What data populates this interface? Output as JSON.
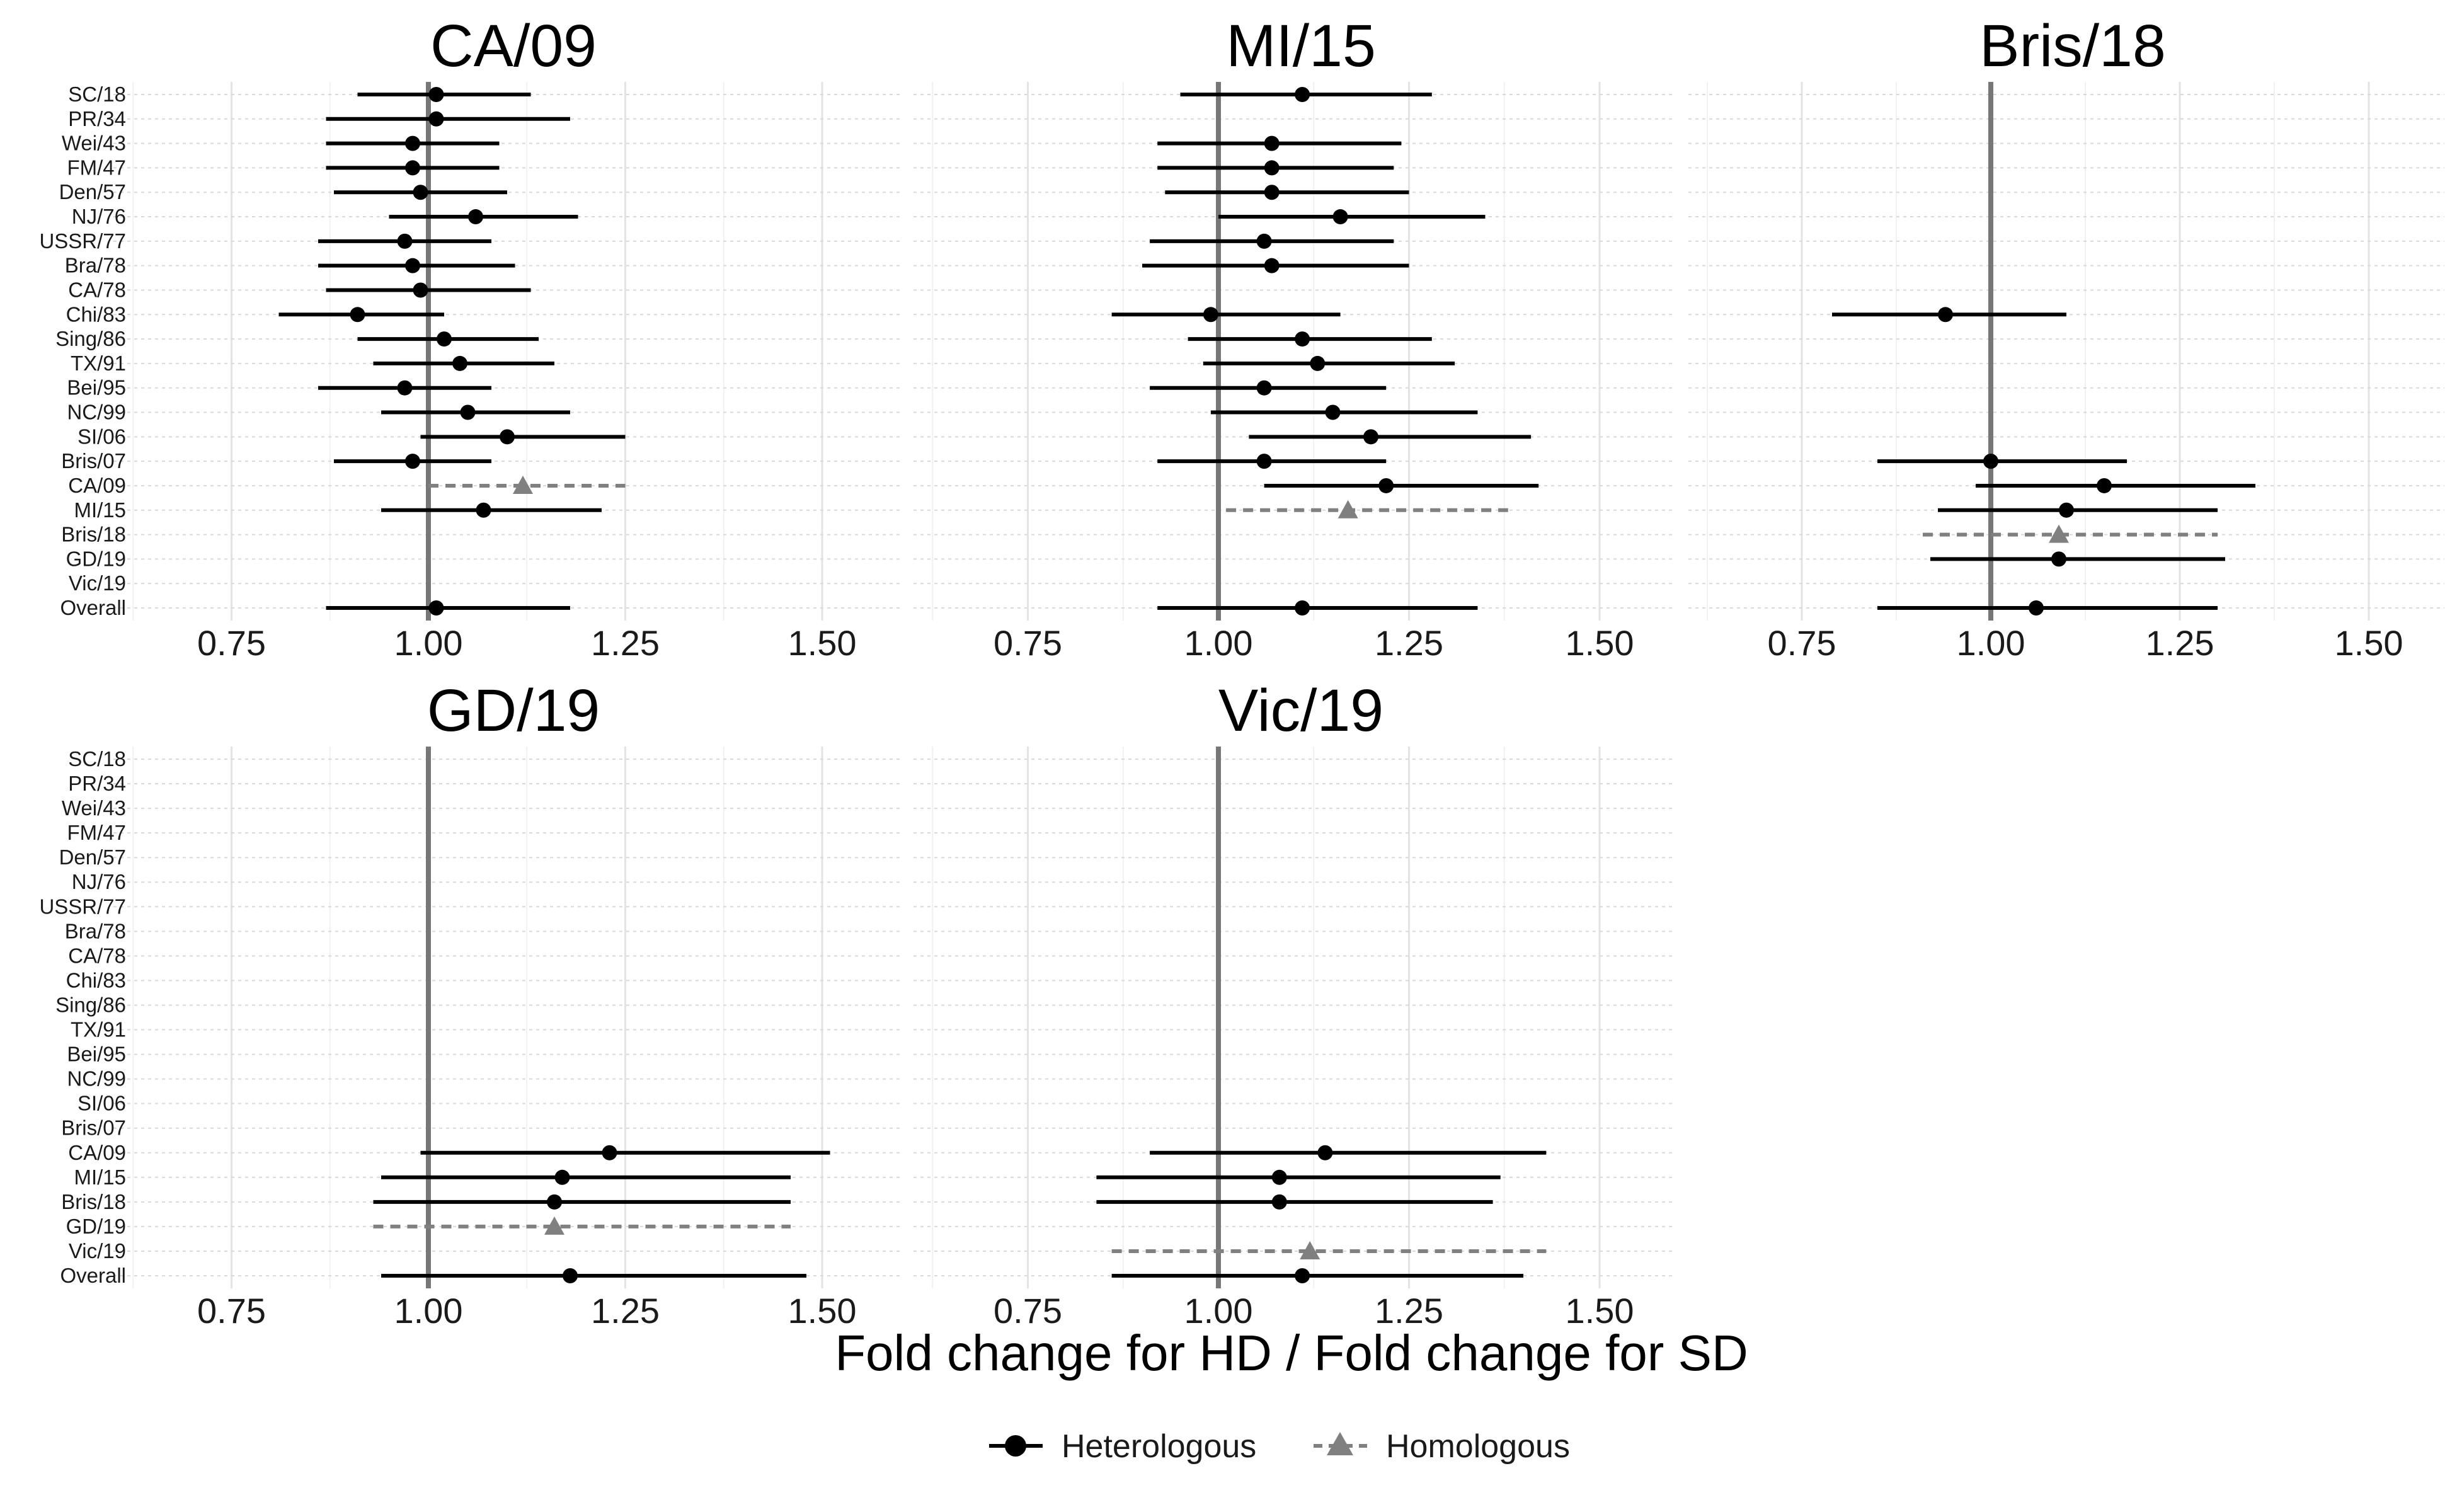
{
  "chart_data": {
    "type": "forest",
    "xlabel": "Fold change for HD / Fold change for SD",
    "xlim": [
      0.6,
      1.6
    ],
    "xticks": [
      "0.75",
      "1.00",
      "1.25",
      "1.50"
    ],
    "xtick_values": [
      0.75,
      1.0,
      1.25,
      1.5
    ],
    "reference_line": 1.0,
    "grid": true,
    "rows": [
      "SC/18",
      "PR/34",
      "Wei/43",
      "FM/47",
      "Den/57",
      "NJ/76",
      "USSR/77",
      "Bra/78",
      "CA/78",
      "Chi/83",
      "Sing/86",
      "TX/91",
      "Bei/95",
      "NC/99",
      "SI/06",
      "Bris/07",
      "CA/09",
      "MI/15",
      "Bris/18",
      "GD/19",
      "Vic/19",
      "Overall"
    ],
    "legend": {
      "position": "bottom",
      "entries": [
        {
          "label": "Heterologous",
          "marker": "circle",
          "line": "solid",
          "color": "#000000"
        },
        {
          "label": "Homologous",
          "marker": "triangle",
          "line": "dashed",
          "color": "#808080"
        }
      ]
    },
    "panels": [
      {
        "title": "CA/09",
        "points": [
          {
            "row": "SC/18",
            "est": 1.01,
            "lo": 0.91,
            "hi": 1.13,
            "type": "Heterologous"
          },
          {
            "row": "PR/34",
            "est": 1.01,
            "lo": 0.87,
            "hi": 1.18,
            "type": "Heterologous"
          },
          {
            "row": "Wei/43",
            "est": 0.98,
            "lo": 0.87,
            "hi": 1.09,
            "type": "Heterologous"
          },
          {
            "row": "FM/47",
            "est": 0.98,
            "lo": 0.87,
            "hi": 1.09,
            "type": "Heterologous"
          },
          {
            "row": "Den/57",
            "est": 0.99,
            "lo": 0.88,
            "hi": 1.1,
            "type": "Heterologous"
          },
          {
            "row": "NJ/76",
            "est": 1.06,
            "lo": 0.95,
            "hi": 1.19,
            "type": "Heterologous"
          },
          {
            "row": "USSR/77",
            "est": 0.97,
            "lo": 0.86,
            "hi": 1.08,
            "type": "Heterologous"
          },
          {
            "row": "Bra/78",
            "est": 0.98,
            "lo": 0.86,
            "hi": 1.11,
            "type": "Heterologous"
          },
          {
            "row": "CA/78",
            "est": 0.99,
            "lo": 0.87,
            "hi": 1.13,
            "type": "Heterologous"
          },
          {
            "row": "Chi/83",
            "est": 0.91,
            "lo": 0.81,
            "hi": 1.02,
            "type": "Heterologous"
          },
          {
            "row": "Sing/86",
            "est": 1.02,
            "lo": 0.91,
            "hi": 1.14,
            "type": "Heterologous"
          },
          {
            "row": "TX/91",
            "est": 1.04,
            "lo": 0.93,
            "hi": 1.16,
            "type": "Heterologous"
          },
          {
            "row": "Bei/95",
            "est": 0.97,
            "lo": 0.86,
            "hi": 1.08,
            "type": "Heterologous"
          },
          {
            "row": "NC/99",
            "est": 1.05,
            "lo": 0.94,
            "hi": 1.18,
            "type": "Heterologous"
          },
          {
            "row": "SI/06",
            "est": 1.1,
            "lo": 0.99,
            "hi": 1.25,
            "type": "Heterologous"
          },
          {
            "row": "Bris/07",
            "est": 0.98,
            "lo": 0.88,
            "hi": 1.08,
            "type": "Heterologous"
          },
          {
            "row": "CA/09",
            "est": 1.12,
            "lo": 1.0,
            "hi": 1.25,
            "type": "Homologous"
          },
          {
            "row": "MI/15",
            "est": 1.07,
            "lo": 0.94,
            "hi": 1.22,
            "type": "Heterologous"
          },
          {
            "row": "Overall",
            "est": 1.01,
            "lo": 0.87,
            "hi": 1.18,
            "type": "Heterologous"
          }
        ]
      },
      {
        "title": "MI/15",
        "points": [
          {
            "row": "SC/18",
            "est": 1.11,
            "lo": 0.95,
            "hi": 1.28,
            "type": "Heterologous"
          },
          {
            "row": "Wei/43",
            "est": 1.07,
            "lo": 0.92,
            "hi": 1.24,
            "type": "Heterologous"
          },
          {
            "row": "FM/47",
            "est": 1.07,
            "lo": 0.92,
            "hi": 1.23,
            "type": "Heterologous"
          },
          {
            "row": "Den/57",
            "est": 1.07,
            "lo": 0.93,
            "hi": 1.25,
            "type": "Heterologous"
          },
          {
            "row": "NJ/76",
            "est": 1.16,
            "lo": 1.0,
            "hi": 1.35,
            "type": "Heterologous"
          },
          {
            "row": "USSR/77",
            "est": 1.06,
            "lo": 0.91,
            "hi": 1.23,
            "type": "Heterologous"
          },
          {
            "row": "Bra/78",
            "est": 1.07,
            "lo": 0.9,
            "hi": 1.25,
            "type": "Heterologous"
          },
          {
            "row": "Chi/83",
            "est": 0.99,
            "lo": 0.86,
            "hi": 1.16,
            "type": "Heterologous"
          },
          {
            "row": "Sing/86",
            "est": 1.11,
            "lo": 0.96,
            "hi": 1.28,
            "type": "Heterologous"
          },
          {
            "row": "TX/91",
            "est": 1.13,
            "lo": 0.98,
            "hi": 1.31,
            "type": "Heterologous"
          },
          {
            "row": "Bei/95",
            "est": 1.06,
            "lo": 0.91,
            "hi": 1.22,
            "type": "Heterologous"
          },
          {
            "row": "NC/99",
            "est": 1.15,
            "lo": 0.99,
            "hi": 1.34,
            "type": "Heterologous"
          },
          {
            "row": "SI/06",
            "est": 1.2,
            "lo": 1.04,
            "hi": 1.41,
            "type": "Heterologous"
          },
          {
            "row": "Bris/07",
            "est": 1.06,
            "lo": 0.92,
            "hi": 1.22,
            "type": "Heterologous"
          },
          {
            "row": "CA/09",
            "est": 1.22,
            "lo": 1.06,
            "hi": 1.42,
            "type": "Heterologous"
          },
          {
            "row": "MI/15",
            "est": 1.17,
            "lo": 1.01,
            "hi": 1.38,
            "type": "Homologous"
          },
          {
            "row": "Overall",
            "est": 1.11,
            "lo": 0.92,
            "hi": 1.34,
            "type": "Heterologous"
          }
        ]
      },
      {
        "title": "Bris/18",
        "points": [
          {
            "row": "Chi/83",
            "est": 0.94,
            "lo": 0.79,
            "hi": 1.1,
            "type": "Heterologous"
          },
          {
            "row": "Bris/07",
            "est": 1.0,
            "lo": 0.85,
            "hi": 1.18,
            "type": "Heterologous"
          },
          {
            "row": "CA/09",
            "est": 1.15,
            "lo": 0.98,
            "hi": 1.35,
            "type": "Heterologous"
          },
          {
            "row": "MI/15",
            "est": 1.1,
            "lo": 0.93,
            "hi": 1.3,
            "type": "Heterologous"
          },
          {
            "row": "Bris/18",
            "est": 1.09,
            "lo": 0.91,
            "hi": 1.3,
            "type": "Homologous"
          },
          {
            "row": "GD/19",
            "est": 1.09,
            "lo": 0.92,
            "hi": 1.31,
            "type": "Heterologous"
          },
          {
            "row": "Overall",
            "est": 1.06,
            "lo": 0.85,
            "hi": 1.3,
            "type": "Heterologous"
          }
        ]
      },
      {
        "title": "GD/19",
        "points": [
          {
            "row": "CA/09",
            "est": 1.23,
            "lo": 0.99,
            "hi": 1.51,
            "type": "Heterologous"
          },
          {
            "row": "MI/15",
            "est": 1.17,
            "lo": 0.94,
            "hi": 1.46,
            "type": "Heterologous"
          },
          {
            "row": "Bris/18",
            "est": 1.16,
            "lo": 0.93,
            "hi": 1.46,
            "type": "Heterologous"
          },
          {
            "row": "GD/19",
            "est": 1.16,
            "lo": 0.93,
            "hi": 1.46,
            "type": "Homologous"
          },
          {
            "row": "Overall",
            "est": 1.18,
            "lo": 0.94,
            "hi": 1.48,
            "type": "Heterologous"
          }
        ]
      },
      {
        "title": "Vic/19",
        "points": [
          {
            "row": "CA/09",
            "est": 1.14,
            "lo": 0.91,
            "hi": 1.43,
            "type": "Heterologous"
          },
          {
            "row": "MI/15",
            "est": 1.08,
            "lo": 0.84,
            "hi": 1.37,
            "type": "Heterologous"
          },
          {
            "row": "Bris/18",
            "est": 1.08,
            "lo": 0.84,
            "hi": 1.36,
            "type": "Heterologous"
          },
          {
            "row": "Vic/19",
            "est": 1.12,
            "lo": 0.86,
            "hi": 1.43,
            "type": "Homologous"
          },
          {
            "row": "Overall",
            "est": 1.11,
            "lo": 0.86,
            "hi": 1.4,
            "type": "Heterologous"
          }
        ]
      }
    ]
  }
}
